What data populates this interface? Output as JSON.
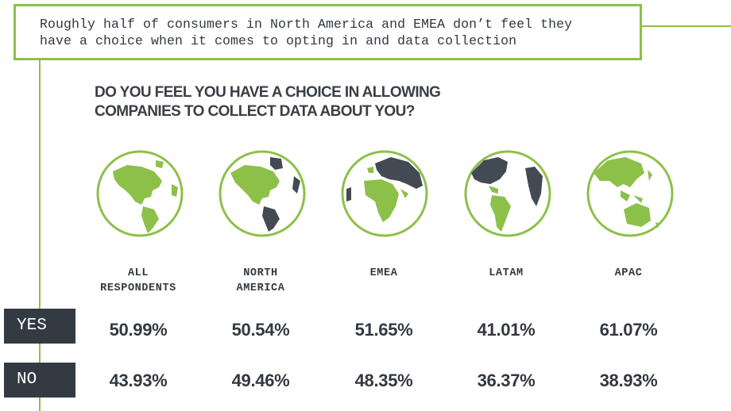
{
  "callout": {
    "line1": "Roughly half of consumers in North America and EMEA don’t feel they",
    "line2": "have a choice when it comes to opting in and data collection"
  },
  "colors": {
    "accent": "#8dc049",
    "dark": "#333a42",
    "land": "#8dc049",
    "land_dark": "#434a53"
  },
  "chart_data": {
    "type": "table",
    "title_line1": "DO YOU FEEL YOU HAVE A CHOICE IN ALLOWING",
    "title_line2": "COMPANIES TO COLLECT DATA ABOUT YOU?",
    "categories": [
      {
        "id": "all",
        "line1": "ALL",
        "line2": "RESPONDENTS",
        "globe": "americas-all"
      },
      {
        "id": "na",
        "line1": "NORTH",
        "line2": "AMERICA",
        "globe": "americas-na"
      },
      {
        "id": "emea",
        "line1": "EMEA",
        "line2": "",
        "globe": "emea"
      },
      {
        "id": "latam",
        "line1": "LATAM",
        "line2": "",
        "globe": "latam"
      },
      {
        "id": "apac",
        "line1": "APAC",
        "line2": "",
        "globe": "apac"
      }
    ],
    "series": [
      {
        "name": "YES",
        "values": [
          50.99,
          50.54,
          51.65,
          41.01,
          61.07
        ],
        "labels": [
          "50.99%",
          "50.54%",
          "51.65%",
          "41.01%",
          "61.07%"
        ]
      },
      {
        "name": "NO",
        "values": [
          43.93,
          49.46,
          48.35,
          36.37,
          38.93
        ],
        "labels": [
          "43.93%",
          "49.46%",
          "48.35%",
          "36.37%",
          "38.93%"
        ]
      }
    ]
  }
}
